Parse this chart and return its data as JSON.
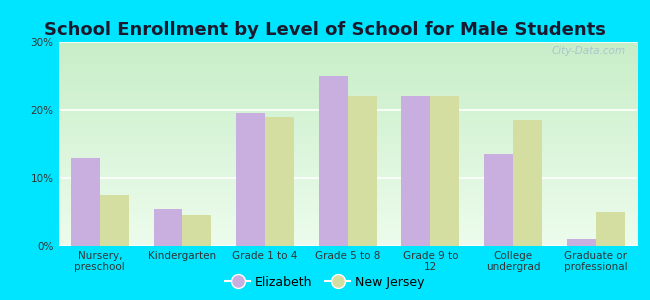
{
  "title": "School Enrollment by Level of School for Male Students",
  "categories": [
    "Nursery,\npreschool",
    "Kindergarten",
    "Grade 1 to 4",
    "Grade 5 to 8",
    "Grade 9 to\n12",
    "College\nundergrad",
    "Graduate or\nprofessional"
  ],
  "elizabeth_values": [
    13.0,
    5.5,
    19.5,
    25.0,
    22.0,
    13.5,
    1.0
  ],
  "nj_values": [
    7.5,
    4.5,
    19.0,
    22.0,
    22.0,
    18.5,
    5.0
  ],
  "elizabeth_color": "#c9aee0",
  "nj_color": "#d4dea0",
  "background_color": "#00e5ff",
  "plot_bg_top": "#c8eec8",
  "plot_bg_bottom": "#edfced",
  "ylim": [
    0,
    30
  ],
  "yticks": [
    0,
    10,
    20,
    30
  ],
  "ytick_labels": [
    "0%",
    "10%",
    "20%",
    "30%"
  ],
  "legend_labels": [
    "Elizabeth",
    "New Jersey"
  ],
  "bar_width": 0.35,
  "title_fontsize": 13,
  "tick_fontsize": 7.5,
  "legend_fontsize": 9,
  "watermark": "City-Data.com"
}
